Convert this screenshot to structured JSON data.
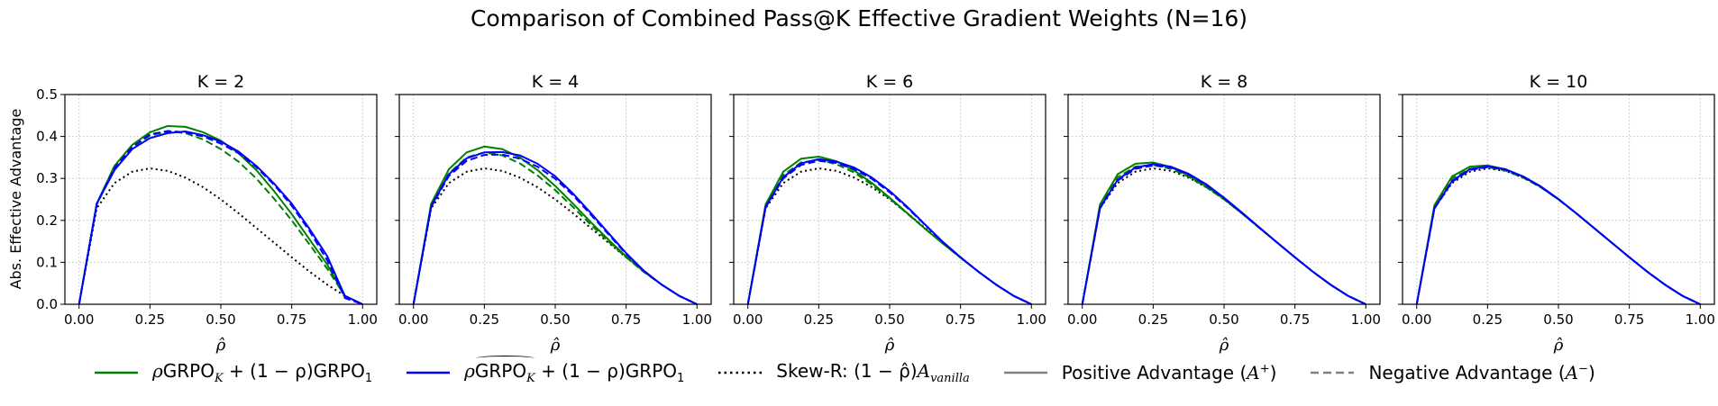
{
  "figure": {
    "suptitle": "Comparison of Combined Pass@K Effective Gradient Weights (N=16)",
    "ylabel": "Abs. Effective Advantage",
    "xlabel": "ρ̂",
    "colors": {
      "green": "#008000",
      "blue": "#0000ff",
      "black": "#000000",
      "gray": "#808080",
      "grid": "#b0b0b0"
    }
  },
  "legend": [
    {
      "style": "green-solid",
      "prefix": "ρ",
      "main": "GRPO",
      "sub": "K",
      "suffix": " + (1 − ρ)GRPO",
      "sub2": "1"
    },
    {
      "style": "blue-solid",
      "prefix": "ρ",
      "main": "GRPO",
      "sub": "K",
      "suffix": " + (1 − ρ)GRPO",
      "sub2": "1",
      "tilde": true
    },
    {
      "style": "black-dotted",
      "text": "Skew-R: (1 − ρ̂)",
      "italic": "A",
      "italic_sub": "vanilla"
    },
    {
      "style": "gray-solid",
      "text": "Positive Advantage (",
      "italic": "A",
      "sup": "+",
      "tail": ")"
    },
    {
      "style": "gray-dashed",
      "text": "Negative Advantage (",
      "italic": "A",
      "sup": "−",
      "tail": ")"
    }
  ],
  "chart_data": [
    {
      "type": "line",
      "title": "K = 2",
      "xlim": [
        -0.05,
        1.05
      ],
      "ylim": [
        0,
        0.5
      ],
      "xticks": [
        0.0,
        0.25,
        0.5,
        0.75,
        1.0
      ],
      "xticklabels": [
        "0.00",
        "0.25",
        "0.50",
        "0.75",
        "1.00"
      ],
      "yticks": [
        0.0,
        0.1,
        0.2,
        0.3,
        0.4,
        0.5
      ],
      "yticklabels": [
        "0.0",
        "0.1",
        "0.2",
        "0.3",
        "0.4",
        "0.5"
      ],
      "grid": true,
      "x": [
        0,
        0.0625,
        0.125,
        0.1875,
        0.25,
        0.3125,
        0.375,
        0.4375,
        0.5,
        0.5625,
        0.625,
        0.6875,
        0.75,
        0.8125,
        0.875,
        0.9375,
        1.0
      ],
      "series": [
        {
          "style": "black-dotted",
          "values": [
            0,
            0.229,
            0.289,
            0.316,
            0.324,
            0.318,
            0.302,
            0.279,
            0.25,
            0.217,
            0.182,
            0.147,
            0.112,
            0.078,
            0.047,
            0.02,
            0
          ]
        },
        {
          "style": "green-solid",
          "values": [
            0,
            0.24,
            0.33,
            0.38,
            0.41,
            0.425,
            0.423,
            0.41,
            0.39,
            0.36,
            0.32,
            0.27,
            0.215,
            0.155,
            0.095,
            0.02,
            0
          ]
        },
        {
          "style": "green-dashed",
          "values": [
            0,
            0.238,
            0.325,
            0.374,
            0.402,
            0.412,
            0.408,
            0.393,
            0.37,
            0.34,
            0.3,
            0.252,
            0.2,
            0.143,
            0.085,
            0.02,
            0
          ]
        },
        {
          "style": "blue-solid",
          "values": [
            0,
            0.24,
            0.32,
            0.37,
            0.396,
            0.408,
            0.412,
            0.403,
            0.388,
            0.364,
            0.33,
            0.288,
            0.24,
            0.18,
            0.115,
            0.02,
            0
          ]
        },
        {
          "style": "blue-dashed",
          "values": [
            0,
            0.24,
            0.325,
            0.375,
            0.405,
            0.413,
            0.41,
            0.4,
            0.383,
            0.36,
            0.327,
            0.285,
            0.235,
            0.175,
            0.105,
            0.015,
            0
          ]
        }
      ]
    },
    {
      "type": "line",
      "title": "K = 4",
      "xlim": [
        -0.05,
        1.05
      ],
      "ylim": [
        0,
        0.5
      ],
      "xticks": [
        0.0,
        0.25,
        0.5,
        0.75,
        1.0
      ],
      "xticklabels": [
        "0.00",
        "0.25",
        "0.50",
        "0.75",
        "1.00"
      ],
      "yticks": [
        0.0,
        0.1,
        0.2,
        0.3,
        0.4,
        0.5
      ],
      "yticklabels": [],
      "grid": true,
      "x": [
        0,
        0.0625,
        0.125,
        0.1875,
        0.25,
        0.3125,
        0.375,
        0.4375,
        0.5,
        0.5625,
        0.625,
        0.6875,
        0.75,
        0.8125,
        0.875,
        0.9375,
        1.0
      ],
      "series": [
        {
          "style": "black-dotted",
          "values": [
            0,
            0.229,
            0.289,
            0.316,
            0.324,
            0.318,
            0.302,
            0.279,
            0.25,
            0.217,
            0.182,
            0.147,
            0.112,
            0.078,
            0.047,
            0.02,
            0
          ]
        },
        {
          "style": "green-solid",
          "values": [
            0,
            0.24,
            0.322,
            0.362,
            0.376,
            0.37,
            0.35,
            0.32,
            0.282,
            0.24,
            0.196,
            0.154,
            0.114,
            0.078,
            0.047,
            0.02,
            0
          ]
        },
        {
          "style": "green-dashed",
          "values": [
            0,
            0.236,
            0.312,
            0.35,
            0.362,
            0.355,
            0.336,
            0.307,
            0.272,
            0.232,
            0.19,
            0.15,
            0.112,
            0.077,
            0.047,
            0.02,
            0
          ]
        },
        {
          "style": "blue-solid",
          "values": [
            0,
            0.234,
            0.31,
            0.348,
            0.362,
            0.363,
            0.355,
            0.335,
            0.305,
            0.264,
            0.218,
            0.17,
            0.122,
            0.08,
            0.047,
            0.02,
            0
          ]
        },
        {
          "style": "blue-dashed",
          "values": [
            0,
            0.232,
            0.306,
            0.342,
            0.356,
            0.357,
            0.347,
            0.328,
            0.299,
            0.26,
            0.214,
            0.167,
            0.12,
            0.079,
            0.047,
            0.02,
            0
          ]
        }
      ]
    },
    {
      "type": "line",
      "title": "K = 6",
      "xlim": [
        -0.05,
        1.05
      ],
      "ylim": [
        0,
        0.5
      ],
      "xticks": [
        0.0,
        0.25,
        0.5,
        0.75,
        1.0
      ],
      "xticklabels": [
        "0.00",
        "0.25",
        "0.50",
        "0.75",
        "1.00"
      ],
      "yticks": [
        0.0,
        0.1,
        0.2,
        0.3,
        0.4,
        0.5
      ],
      "yticklabels": [],
      "grid": true,
      "x": [
        0,
        0.0625,
        0.125,
        0.1875,
        0.25,
        0.3125,
        0.375,
        0.4375,
        0.5,
        0.5625,
        0.625,
        0.6875,
        0.75,
        0.8125,
        0.875,
        0.9375,
        1.0
      ],
      "series": [
        {
          "style": "black-dotted",
          "values": [
            0,
            0.229,
            0.289,
            0.316,
            0.324,
            0.318,
            0.302,
            0.279,
            0.25,
            0.217,
            0.182,
            0.147,
            0.112,
            0.078,
            0.047,
            0.02,
            0
          ]
        },
        {
          "style": "green-solid",
          "values": [
            0,
            0.238,
            0.316,
            0.347,
            0.352,
            0.341,
            0.319,
            0.289,
            0.254,
            0.217,
            0.18,
            0.145,
            0.111,
            0.078,
            0.047,
            0.02,
            0
          ]
        },
        {
          "style": "green-dashed",
          "values": [
            0,
            0.234,
            0.308,
            0.338,
            0.344,
            0.334,
            0.314,
            0.285,
            0.252,
            0.216,
            0.18,
            0.145,
            0.111,
            0.078,
            0.047,
            0.02,
            0
          ]
        },
        {
          "style": "blue-solid",
          "values": [
            0,
            0.232,
            0.303,
            0.336,
            0.346,
            0.34,
            0.326,
            0.302,
            0.27,
            0.232,
            0.19,
            0.149,
            0.112,
            0.078,
            0.047,
            0.02,
            0
          ]
        },
        {
          "style": "blue-dashed",
          "values": [
            0,
            0.231,
            0.3,
            0.332,
            0.342,
            0.337,
            0.322,
            0.299,
            0.267,
            0.23,
            0.189,
            0.148,
            0.112,
            0.078,
            0.047,
            0.02,
            0
          ]
        }
      ]
    },
    {
      "type": "line",
      "title": "K = 8",
      "xlim": [
        -0.05,
        1.05
      ],
      "ylim": [
        0,
        0.5
      ],
      "xticks": [
        0.0,
        0.25,
        0.5,
        0.75,
        1.0
      ],
      "xticklabels": [
        "0.00",
        "0.25",
        "0.50",
        "0.75",
        "1.00"
      ],
      "yticks": [
        0.0,
        0.1,
        0.2,
        0.3,
        0.4,
        0.5
      ],
      "yticklabels": [],
      "grid": true,
      "x": [
        0,
        0.0625,
        0.125,
        0.1875,
        0.25,
        0.3125,
        0.375,
        0.4375,
        0.5,
        0.5625,
        0.625,
        0.6875,
        0.75,
        0.8125,
        0.875,
        0.9375,
        1.0
      ],
      "series": [
        {
          "style": "black-dotted",
          "values": [
            0,
            0.229,
            0.289,
            0.316,
            0.324,
            0.318,
            0.302,
            0.279,
            0.25,
            0.217,
            0.182,
            0.147,
            0.112,
            0.078,
            0.047,
            0.02,
            0
          ]
        },
        {
          "style": "green-solid",
          "values": [
            0,
            0.238,
            0.31,
            0.335,
            0.338,
            0.327,
            0.307,
            0.281,
            0.251,
            0.217,
            0.182,
            0.147,
            0.112,
            0.078,
            0.047,
            0.02,
            0
          ]
        },
        {
          "style": "green-dashed",
          "values": [
            0,
            0.232,
            0.303,
            0.328,
            0.332,
            0.323,
            0.304,
            0.279,
            0.25,
            0.217,
            0.182,
            0.147,
            0.112,
            0.078,
            0.047,
            0.02,
            0
          ]
        },
        {
          "style": "blue-solid",
          "values": [
            0,
            0.23,
            0.297,
            0.326,
            0.334,
            0.328,
            0.311,
            0.286,
            0.254,
            0.219,
            0.183,
            0.147,
            0.112,
            0.078,
            0.047,
            0.02,
            0
          ]
        },
        {
          "style": "blue-dashed",
          "values": [
            0,
            0.229,
            0.295,
            0.323,
            0.331,
            0.326,
            0.309,
            0.284,
            0.253,
            0.218,
            0.182,
            0.147,
            0.112,
            0.078,
            0.047,
            0.02,
            0
          ]
        }
      ]
    },
    {
      "type": "line",
      "title": "K = 10",
      "xlim": [
        -0.05,
        1.05
      ],
      "ylim": [
        0,
        0.5
      ],
      "xticks": [
        0.0,
        0.25,
        0.5,
        0.75,
        1.0
      ],
      "xticklabels": [
        "0.00",
        "0.25",
        "0.50",
        "0.75",
        "1.00"
      ],
      "yticks": [
        0.0,
        0.1,
        0.2,
        0.3,
        0.4,
        0.5
      ],
      "yticklabels": [],
      "grid": true,
      "x": [
        0,
        0.0625,
        0.125,
        0.1875,
        0.25,
        0.3125,
        0.375,
        0.4375,
        0.5,
        0.5625,
        0.625,
        0.6875,
        0.75,
        0.8125,
        0.875,
        0.9375,
        1.0
      ],
      "series": [
        {
          "style": "black-dotted",
          "values": [
            0,
            0.229,
            0.289,
            0.316,
            0.324,
            0.318,
            0.302,
            0.279,
            0.25,
            0.217,
            0.182,
            0.147,
            0.112,
            0.078,
            0.047,
            0.02,
            0
          ]
        },
        {
          "style": "green-solid",
          "values": [
            0,
            0.236,
            0.305,
            0.328,
            0.331,
            0.322,
            0.304,
            0.28,
            0.25,
            0.217,
            0.182,
            0.147,
            0.112,
            0.078,
            0.047,
            0.02,
            0
          ]
        },
        {
          "style": "green-dashed",
          "values": [
            0,
            0.231,
            0.3,
            0.323,
            0.327,
            0.319,
            0.302,
            0.279,
            0.25,
            0.217,
            0.182,
            0.147,
            0.112,
            0.078,
            0.047,
            0.02,
            0
          ]
        },
        {
          "style": "blue-solid",
          "values": [
            0,
            0.229,
            0.294,
            0.322,
            0.329,
            0.322,
            0.305,
            0.281,
            0.251,
            0.217,
            0.182,
            0.147,
            0.112,
            0.078,
            0.047,
            0.02,
            0
          ]
        },
        {
          "style": "blue-dashed",
          "values": [
            0,
            0.228,
            0.292,
            0.32,
            0.327,
            0.321,
            0.304,
            0.28,
            0.25,
            0.217,
            0.182,
            0.147,
            0.112,
            0.078,
            0.047,
            0.02,
            0
          ]
        }
      ]
    }
  ]
}
